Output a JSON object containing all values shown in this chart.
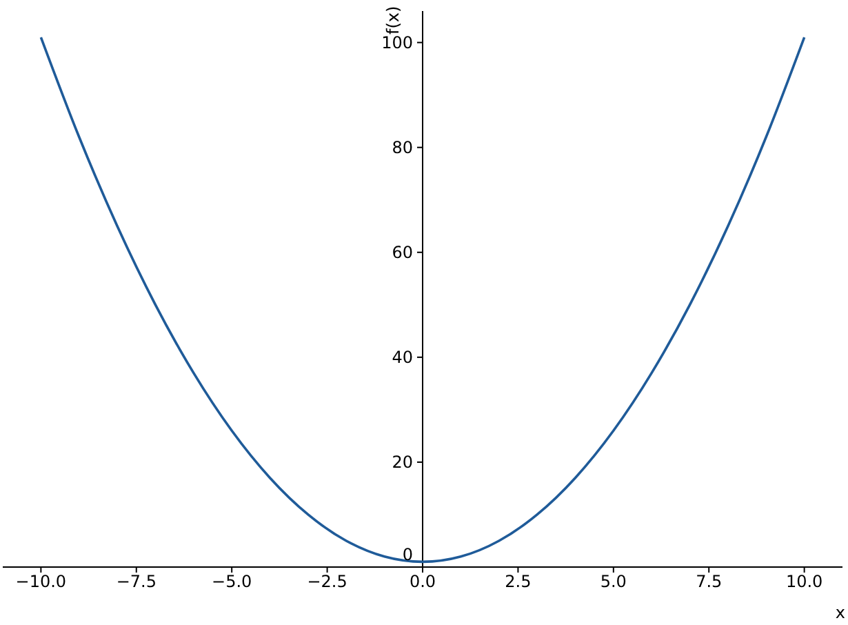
{
  "chart_data": {
    "type": "line",
    "xlabel": "x",
    "ylabel": "f(x)",
    "x": [
      -10,
      -9,
      -8,
      -7,
      -6,
      -5,
      -4,
      -3,
      -2,
      -1,
      0,
      1,
      2,
      3,
      4,
      5,
      6,
      7,
      8,
      9,
      10
    ],
    "values": [
      101,
      82,
      65,
      50,
      37,
      26,
      17,
      10,
      5,
      2,
      1,
      2,
      5,
      10,
      17,
      26,
      37,
      50,
      65,
      82,
      101
    ],
    "color": "#1f5b99",
    "marker": "none",
    "xlim": [
      -11,
      11
    ],
    "ylim": [
      0,
      106
    ],
    "xticks": [
      {
        "value": -10,
        "label": "−10.0"
      },
      {
        "value": -7.5,
        "label": "−7.5"
      },
      {
        "value": -5,
        "label": "−5.0"
      },
      {
        "value": -2.5,
        "label": "−2.5"
      },
      {
        "value": 0,
        "label": "0.0"
      },
      {
        "value": 2.5,
        "label": "2.5"
      },
      {
        "value": 5,
        "label": "5.0"
      },
      {
        "value": 7.5,
        "label": "7.5"
      },
      {
        "value": 10,
        "label": "10.0"
      }
    ],
    "yticks": [
      0,
      20,
      40,
      60,
      80,
      100
    ]
  }
}
